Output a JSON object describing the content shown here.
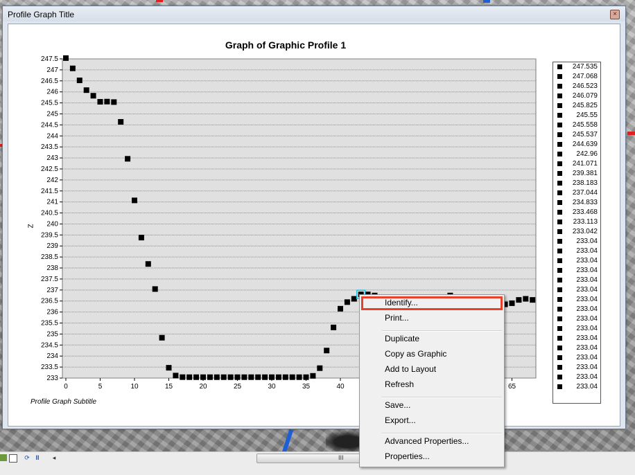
{
  "window": {
    "title": "Profile Graph Title",
    "close_glyph": "×"
  },
  "graph": {
    "title": "Graph of Graphic Profile 1",
    "subtitle": "Profile Graph Subtitle",
    "ylabel": "Z"
  },
  "chart_data": {
    "type": "scatter",
    "title": "Graph of Graphic Profile 1",
    "subtitle": "Profile Graph Subtitle",
    "xlabel": "",
    "ylabel": "Z",
    "xlim": [
      0,
      68
    ],
    "ylim": [
      233,
      247.5
    ],
    "x_ticks": [
      "0",
      "5",
      "10",
      "15",
      "20",
      "25",
      "30",
      "35",
      "40",
      "65"
    ],
    "y_ticks": [
      "247.5",
      "247",
      "246.5",
      "246",
      "245.5",
      "245",
      "244.5",
      "244",
      "243.5",
      "243",
      "242.5",
      "242",
      "241.5",
      "241",
      "240.5",
      "240",
      "239.5",
      "239",
      "238.5",
      "238",
      "237.5",
      "237",
      "236.5",
      "236",
      "235.5",
      "235",
      "234.5",
      "234",
      "233.5",
      "233"
    ],
    "grid": true,
    "legend_position": "right",
    "marker_color": "#000000",
    "points": [
      [
        0,
        247.535
      ],
      [
        1,
        247.068
      ],
      [
        2,
        246.523
      ],
      [
        3,
        246.079
      ],
      [
        4,
        245.825
      ],
      [
        5,
        245.55
      ],
      [
        6,
        245.558
      ],
      [
        7,
        245.537
      ],
      [
        8,
        244.639
      ],
      [
        9,
        242.96
      ],
      [
        10,
        241.071
      ],
      [
        11,
        239.381
      ],
      [
        12,
        238.183
      ],
      [
        13,
        237.044
      ],
      [
        14,
        234.833
      ],
      [
        15,
        233.468
      ],
      [
        16,
        233.113
      ],
      [
        17,
        233.042
      ],
      [
        18,
        233.04
      ],
      [
        19,
        233.04
      ],
      [
        20,
        233.04
      ],
      [
        21,
        233.04
      ],
      [
        22,
        233.04
      ],
      [
        23,
        233.04
      ],
      [
        24,
        233.04
      ],
      [
        25,
        233.04
      ],
      [
        26,
        233.04
      ],
      [
        27,
        233.04
      ],
      [
        28,
        233.04
      ],
      [
        29,
        233.04
      ],
      [
        30,
        233.04
      ],
      [
        31,
        233.04
      ],
      [
        32,
        233.04
      ],
      [
        33,
        233.04
      ],
      [
        34,
        233.04
      ],
      [
        35,
        233.04
      ],
      [
        36,
        233.1
      ],
      [
        37,
        233.45
      ],
      [
        38,
        234.25
      ],
      [
        39,
        235.3
      ],
      [
        40,
        236.15
      ],
      [
        41,
        236.45
      ],
      [
        42,
        236.6
      ],
      [
        43,
        236.8
      ],
      [
        44,
        236.8
      ],
      [
        45,
        236.75
      ],
      [
        56,
        236.75
      ],
      [
        64,
        236.35
      ],
      [
        65,
        236.4
      ],
      [
        66,
        236.55
      ],
      [
        67,
        236.6
      ],
      [
        68,
        236.55
      ]
    ]
  },
  "legend": {
    "items": [
      "247.535",
      "247.068",
      "246.523",
      "246.079",
      "245.825",
      "245.55",
      "245.558",
      "245.537",
      "244.639",
      "242.96",
      "241.071",
      "239.381",
      "238.183",
      "237.044",
      "234.833",
      "233.468",
      "233.113",
      "233.042",
      "233.04",
      "233.04",
      "233.04",
      "233.04",
      "233.04",
      "233.04",
      "233.04",
      "233.04",
      "233.04",
      "233.04",
      "233.04",
      "233.04",
      "233.04",
      "233.04",
      "233.04",
      "233.04"
    ]
  },
  "context_menu": {
    "items": [
      {
        "label": "Identify...",
        "highlighted": true
      },
      {
        "label": "Print..."
      },
      {
        "separator": true
      },
      {
        "label": "Duplicate"
      },
      {
        "label": "Copy as Graphic"
      },
      {
        "label": "Add to Layout"
      },
      {
        "label": "Refresh"
      },
      {
        "separator": true
      },
      {
        "label": "Save..."
      },
      {
        "label": "Export..."
      },
      {
        "separator": true
      },
      {
        "label": "Advanced Properties..."
      },
      {
        "label": "Properties..."
      }
    ],
    "highlight_color": "#e8402c"
  },
  "taskbar": {
    "grip_glyph": "III",
    "left_arrow": "◂",
    "pause_glyph": "II",
    "refresh_glyph": "⟳"
  }
}
